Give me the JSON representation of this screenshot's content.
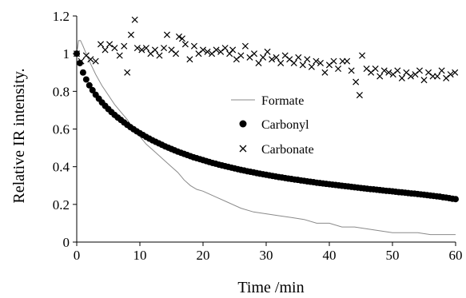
{
  "chart_data": {
    "type": "scatter",
    "xlabel": "Time /min",
    "ylabel": "Relative IR intensity.",
    "xlim": [
      0,
      60
    ],
    "ylim": [
      0,
      1.2
    ],
    "x_ticks": [
      0,
      10,
      20,
      30,
      40,
      50,
      60
    ],
    "y_ticks": [
      0,
      0.2,
      0.4,
      0.6,
      0.8,
      1,
      1.2
    ],
    "x_tick_labels": [
      "0",
      "10",
      "20",
      "30",
      "40",
      "50",
      "60"
    ],
    "y_tick_labels": [
      "0",
      "0.2",
      "0.4",
      "0.6",
      "0.8",
      "1",
      "1.2"
    ],
    "grid": false,
    "legend_position": "center-right",
    "series": [
      {
        "name": "Formate",
        "style": "line",
        "color": "#8a8a8a",
        "x": [
          0,
          0.3,
          0.6,
          1,
          1.5,
          2,
          3,
          4,
          5,
          6,
          7,
          8,
          9,
          10,
          11,
          12,
          13,
          14,
          15,
          16,
          17,
          18,
          19,
          20,
          22,
          24,
          26,
          28,
          30,
          32,
          34,
          36,
          38,
          40,
          42,
          44,
          46,
          48,
          50,
          52,
          54,
          56,
          58,
          60
        ],
        "y": [
          1.0,
          1.07,
          1.07,
          1.04,
          1.0,
          0.96,
          0.89,
          0.83,
          0.78,
          0.73,
          0.69,
          0.65,
          0.6,
          0.56,
          0.52,
          0.49,
          0.46,
          0.43,
          0.4,
          0.37,
          0.33,
          0.3,
          0.28,
          0.27,
          0.24,
          0.21,
          0.18,
          0.16,
          0.15,
          0.14,
          0.13,
          0.12,
          0.1,
          0.1,
          0.08,
          0.08,
          0.07,
          0.06,
          0.05,
          0.05,
          0.05,
          0.04,
          0.04,
          0.04
        ]
      },
      {
        "name": "Carbonyl",
        "style": "filled-circle",
        "color": "#000000",
        "x": [
          0,
          0.5,
          1,
          1.5,
          2,
          2.5,
          3,
          3.5,
          4,
          4.5,
          5,
          5.5,
          6,
          6.5,
          7,
          7.5,
          8,
          8.5,
          9,
          9.5,
          10,
          10.5,
          11,
          11.5,
          12,
          12.5,
          13,
          13.5,
          14,
          14.5,
          15,
          15.5,
          16,
          16.5,
          17,
          17.5,
          18,
          18.5,
          19,
          19.5,
          20,
          20.5,
          21,
          21.5,
          22,
          22.5,
          23,
          23.5,
          24,
          24.5,
          25,
          25.5,
          26,
          26.5,
          27,
          27.5,
          28,
          28.5,
          29,
          29.5,
          30,
          30.5,
          31,
          31.5,
          32,
          32.5,
          33,
          33.5,
          34,
          34.5,
          35,
          35.5,
          36,
          36.5,
          37,
          37.5,
          38,
          38.5,
          39,
          39.5,
          40,
          40.5,
          41,
          41.5,
          42,
          42.5,
          43,
          43.5,
          44,
          44.5,
          45,
          45.5,
          46,
          46.5,
          47,
          47.5,
          48,
          48.5,
          49,
          49.5,
          50,
          50.5,
          51,
          51.5,
          52,
          52.5,
          53,
          53.5,
          54,
          54.5,
          55,
          55.5,
          56,
          56.5,
          57,
          57.5,
          58,
          58.5,
          59,
          59.5,
          60
        ],
        "y": [
          1.0,
          0.95,
          0.9,
          0.863,
          0.832,
          0.806,
          0.782,
          0.761,
          0.741,
          0.723,
          0.706,
          0.69,
          0.675,
          0.661,
          0.648,
          0.635,
          0.622,
          0.61,
          0.599,
          0.588,
          0.578,
          0.568,
          0.558,
          0.549,
          0.54,
          0.532,
          0.524,
          0.516,
          0.508,
          0.501,
          0.494,
          0.487,
          0.48,
          0.474,
          0.468,
          0.462,
          0.456,
          0.45,
          0.445,
          0.44,
          0.435,
          0.43,
          0.425,
          0.42,
          0.416,
          0.411,
          0.407,
          0.403,
          0.399,
          0.395,
          0.391,
          0.387,
          0.383,
          0.38,
          0.376,
          0.373,
          0.37,
          0.366,
          0.363,
          0.36,
          0.357,
          0.354,
          0.351,
          0.348,
          0.345,
          0.343,
          0.34,
          0.337,
          0.335,
          0.332,
          0.33,
          0.327,
          0.325,
          0.322,
          0.32,
          0.318,
          0.315,
          0.313,
          0.311,
          0.309,
          0.307,
          0.305,
          0.303,
          0.301,
          0.299,
          0.297,
          0.295,
          0.293,
          0.291,
          0.289,
          0.287,
          0.285,
          0.283,
          0.281,
          0.28,
          0.278,
          0.276,
          0.274,
          0.272,
          0.271,
          0.269,
          0.267,
          0.265,
          0.264,
          0.262,
          0.26,
          0.258,
          0.257,
          0.255,
          0.253,
          0.251,
          0.249,
          0.247,
          0.245,
          0.243,
          0.241,
          0.238,
          0.236,
          0.233,
          0.23,
          0.228
        ]
      },
      {
        "name": "Carbonate",
        "style": "cross",
        "color": "#000000",
        "x": [
          0,
          0.7,
          1.5,
          2.2,
          3,
          3.8,
          4.5,
          5.2,
          6,
          6.8,
          7.5,
          8,
          8.6,
          9.2,
          9.6,
          10.3,
          11,
          11.7,
          12.4,
          13.1,
          13.8,
          14.3,
          15,
          15.7,
          16.2,
          16.7,
          17.2,
          17.9,
          18.6,
          19.3,
          20,
          20.7,
          21.4,
          22.1,
          22.8,
          23.5,
          24.2,
          24.7,
          25.3,
          26,
          26.7,
          27.4,
          28.1,
          28.8,
          29.5,
          30.2,
          30.9,
          31.6,
          32.3,
          33,
          33.7,
          34.4,
          35.1,
          35.8,
          36.5,
          37.2,
          37.9,
          38.6,
          39.3,
          40,
          40.7,
          41.4,
          42.1,
          42.8,
          43.5,
          44.2,
          44.8,
          45.2,
          45.9,
          46.6,
          47.3,
          48,
          48.7,
          49.4,
          50.1,
          50.8,
          51.5,
          52.2,
          52.9,
          53.6,
          54.3,
          55,
          55.7,
          56.4,
          57.1,
          57.8,
          58.5,
          59.2,
          59.9
        ],
        "y": [
          1.0,
          0.96,
          0.99,
          0.97,
          0.96,
          1.05,
          1.02,
          1.05,
          1.03,
          0.99,
          1.04,
          0.9,
          1.1,
          1.18,
          1.03,
          1.02,
          1.03,
          1.0,
          1.02,
          0.99,
          1.03,
          1.1,
          1.02,
          1.0,
          1.09,
          1.08,
          1.05,
          0.97,
          1.04,
          1.0,
          1.02,
          1.01,
          1.0,
          1.02,
          1.01,
          1.03,
          1.0,
          1.02,
          0.97,
          0.99,
          1.04,
          0.98,
          1.0,
          0.95,
          0.98,
          1.01,
          0.97,
          0.98,
          0.95,
          0.99,
          0.97,
          0.95,
          0.98,
          0.94,
          0.97,
          0.93,
          0.96,
          0.95,
          0.9,
          0.94,
          0.96,
          0.92,
          0.96,
          0.96,
          0.91,
          0.85,
          0.78,
          0.99,
          0.92,
          0.9,
          0.92,
          0.88,
          0.91,
          0.9,
          0.89,
          0.91,
          0.87,
          0.9,
          0.88,
          0.89,
          0.91,
          0.86,
          0.9,
          0.88,
          0.88,
          0.91,
          0.87,
          0.89,
          0.9
        ]
      }
    ]
  }
}
